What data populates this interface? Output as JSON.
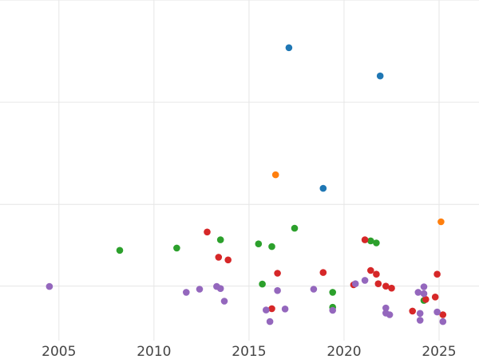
{
  "chart_data": {
    "type": "scatter",
    "title": "",
    "xlabel": "",
    "ylabel": "",
    "xlim": [
      2001.9,
      2027.1
    ],
    "ylim": [
      0,
      100
    ],
    "x_ticks": [
      2005,
      2010,
      2015,
      2020,
      2025
    ],
    "x_tick_labels": [
      "2005",
      "2010",
      "2015",
      "2020",
      "2025"
    ],
    "y_gridlines": [
      16,
      40,
      70,
      100
    ],
    "grid": true,
    "legend": "none",
    "background": "#ffffff",
    "grid_color": "#e6e6e6",
    "series": [
      {
        "color": "#1f77b4",
        "points": [
          [
            2017.1,
            86.0
          ],
          [
            2021.9,
            77.7
          ],
          [
            2018.9,
            44.7
          ]
        ]
      },
      {
        "color": "#ff7f0e",
        "points": [
          [
            2016.4,
            48.7
          ],
          [
            2025.1,
            34.9
          ]
        ]
      },
      {
        "color": "#2ca02c",
        "points": [
          [
            2008.2,
            26.5
          ],
          [
            2011.2,
            27.2
          ],
          [
            2013.5,
            29.6
          ],
          [
            2015.5,
            28.4
          ],
          [
            2016.2,
            27.6
          ],
          [
            2017.4,
            33.0
          ],
          [
            2015.7,
            16.6
          ],
          [
            2019.4,
            14.2
          ],
          [
            2019.4,
            9.8
          ],
          [
            2021.4,
            29.3
          ],
          [
            2021.7,
            28.7
          ],
          [
            2024.2,
            11.8
          ]
        ]
      },
      {
        "color": "#d62728",
        "points": [
          [
            2012.8,
            31.9
          ],
          [
            2013.4,
            24.5
          ],
          [
            2013.9,
            23.7
          ],
          [
            2016.5,
            19.8
          ],
          [
            2016.2,
            9.4
          ],
          [
            2018.9,
            20.0
          ],
          [
            2020.5,
            16.4
          ],
          [
            2021.1,
            29.6
          ],
          [
            2021.4,
            20.6
          ],
          [
            2021.7,
            19.5
          ],
          [
            2021.8,
            16.7
          ],
          [
            2022.2,
            16.0
          ],
          [
            2022.5,
            15.4
          ],
          [
            2023.6,
            8.7
          ],
          [
            2024.3,
            12.1
          ],
          [
            2024.8,
            12.8
          ],
          [
            2024.9,
            19.5
          ],
          [
            2025.2,
            7.6
          ]
        ]
      },
      {
        "color": "#9467bd",
        "points": [
          [
            2004.5,
            15.9
          ],
          [
            2011.7,
            14.2
          ],
          [
            2012.4,
            15.1
          ],
          [
            2013.3,
            15.9
          ],
          [
            2013.5,
            15.3
          ],
          [
            2013.7,
            11.6
          ],
          [
            2015.9,
            9.0
          ],
          [
            2016.1,
            5.6
          ],
          [
            2016.5,
            14.7
          ],
          [
            2016.9,
            9.3
          ],
          [
            2018.4,
            15.1
          ],
          [
            2019.4,
            8.9
          ],
          [
            2020.6,
            16.7
          ],
          [
            2021.1,
            17.7
          ],
          [
            2022.2,
            9.6
          ],
          [
            2022.2,
            8.1
          ],
          [
            2022.4,
            7.6
          ],
          [
            2023.9,
            14.2
          ],
          [
            2024.0,
            8.0
          ],
          [
            2024.0,
            6.0
          ],
          [
            2024.2,
            15.8
          ],
          [
            2024.2,
            13.8
          ],
          [
            2024.9,
            8.4
          ],
          [
            2025.2,
            5.6
          ]
        ]
      }
    ]
  }
}
